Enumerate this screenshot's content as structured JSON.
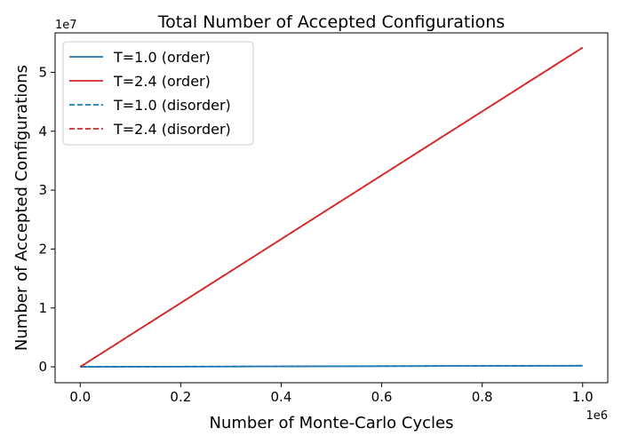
{
  "chart_data": {
    "type": "line",
    "title": "Total Number of Accepted Configurations",
    "xlabel": "Number of Monte-Carlo Cycles",
    "ylabel": "Number of Accepted Configurations",
    "x_offset_label": "1e6",
    "y_offset_label": "1e7",
    "xlim": [
      -0.05,
      1.05
    ],
    "ylim": [
      -0.27,
      5.67
    ],
    "x_ticks": [
      0.0,
      0.2,
      0.4,
      0.6,
      0.8,
      1.0
    ],
    "x_tick_labels": [
      "0.0",
      "0.2",
      "0.4",
      "0.6",
      "0.8",
      "1.0"
    ],
    "y_ticks": [
      0,
      1,
      2,
      3,
      4,
      5
    ],
    "y_tick_labels": [
      "0",
      "1",
      "2",
      "3",
      "4",
      "5"
    ],
    "grid": false,
    "legend_position": "top-left",
    "series": [
      {
        "name": "T=1.0 (order)",
        "color": "#1f77b4",
        "style": "solid",
        "x": [
          0,
          1.0
        ],
        "y": [
          0,
          0.02
        ]
      },
      {
        "name": "T=2.4 (order)",
        "color": "#d62728",
        "style": "solid",
        "x": [
          0,
          1.0
        ],
        "y": [
          0,
          5.42
        ]
      },
      {
        "name": "T=1.0 (disorder)",
        "color": "#1f77b4",
        "style": "dashed",
        "x": [
          0,
          1.0
        ],
        "y": [
          0,
          0.02
        ]
      },
      {
        "name": "T=2.4 (disorder)",
        "color": "#d62728",
        "style": "dashed",
        "x": [
          0,
          1.0
        ],
        "y": [
          0,
          5.42
        ]
      }
    ]
  }
}
